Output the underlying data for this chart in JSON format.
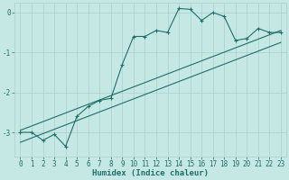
{
  "xlabel": "Humidex (Indice chaleur)",
  "bg_color": "#c5e8e5",
  "line_color": "#1e7068",
  "grid_color": "#a8d0cc",
  "xlim": [
    -0.5,
    23.5
  ],
  "ylim": [
    -3.6,
    0.25
  ],
  "yticks": [
    0,
    -1,
    -2,
    -3
  ],
  "xticks": [
    0,
    1,
    2,
    3,
    4,
    5,
    6,
    7,
    8,
    9,
    10,
    11,
    12,
    13,
    14,
    15,
    16,
    17,
    18,
    19,
    20,
    21,
    22,
    23
  ],
  "curve_x": [
    0,
    1,
    2,
    3,
    4,
    5,
    6,
    7,
    8,
    9,
    10,
    11,
    12,
    13,
    14,
    15,
    16,
    17,
    18,
    19,
    20,
    21,
    22,
    23
  ],
  "curve_y": [
    -3.0,
    -3.0,
    -3.2,
    -3.05,
    -3.35,
    -2.6,
    -2.35,
    -2.2,
    -2.15,
    -1.3,
    -0.6,
    -0.6,
    -0.45,
    -0.5,
    0.1,
    0.08,
    -0.2,
    0.0,
    -0.1,
    -0.7,
    -0.65,
    -0.4,
    -0.5,
    -0.5
  ],
  "line1_x": [
    0,
    23
  ],
  "line1_y": [
    -2.95,
    -0.45
  ],
  "line2_x": [
    0,
    23
  ],
  "line2_y": [
    -3.25,
    -0.75
  ],
  "marker_size": 3,
  "linewidth": 0.8
}
